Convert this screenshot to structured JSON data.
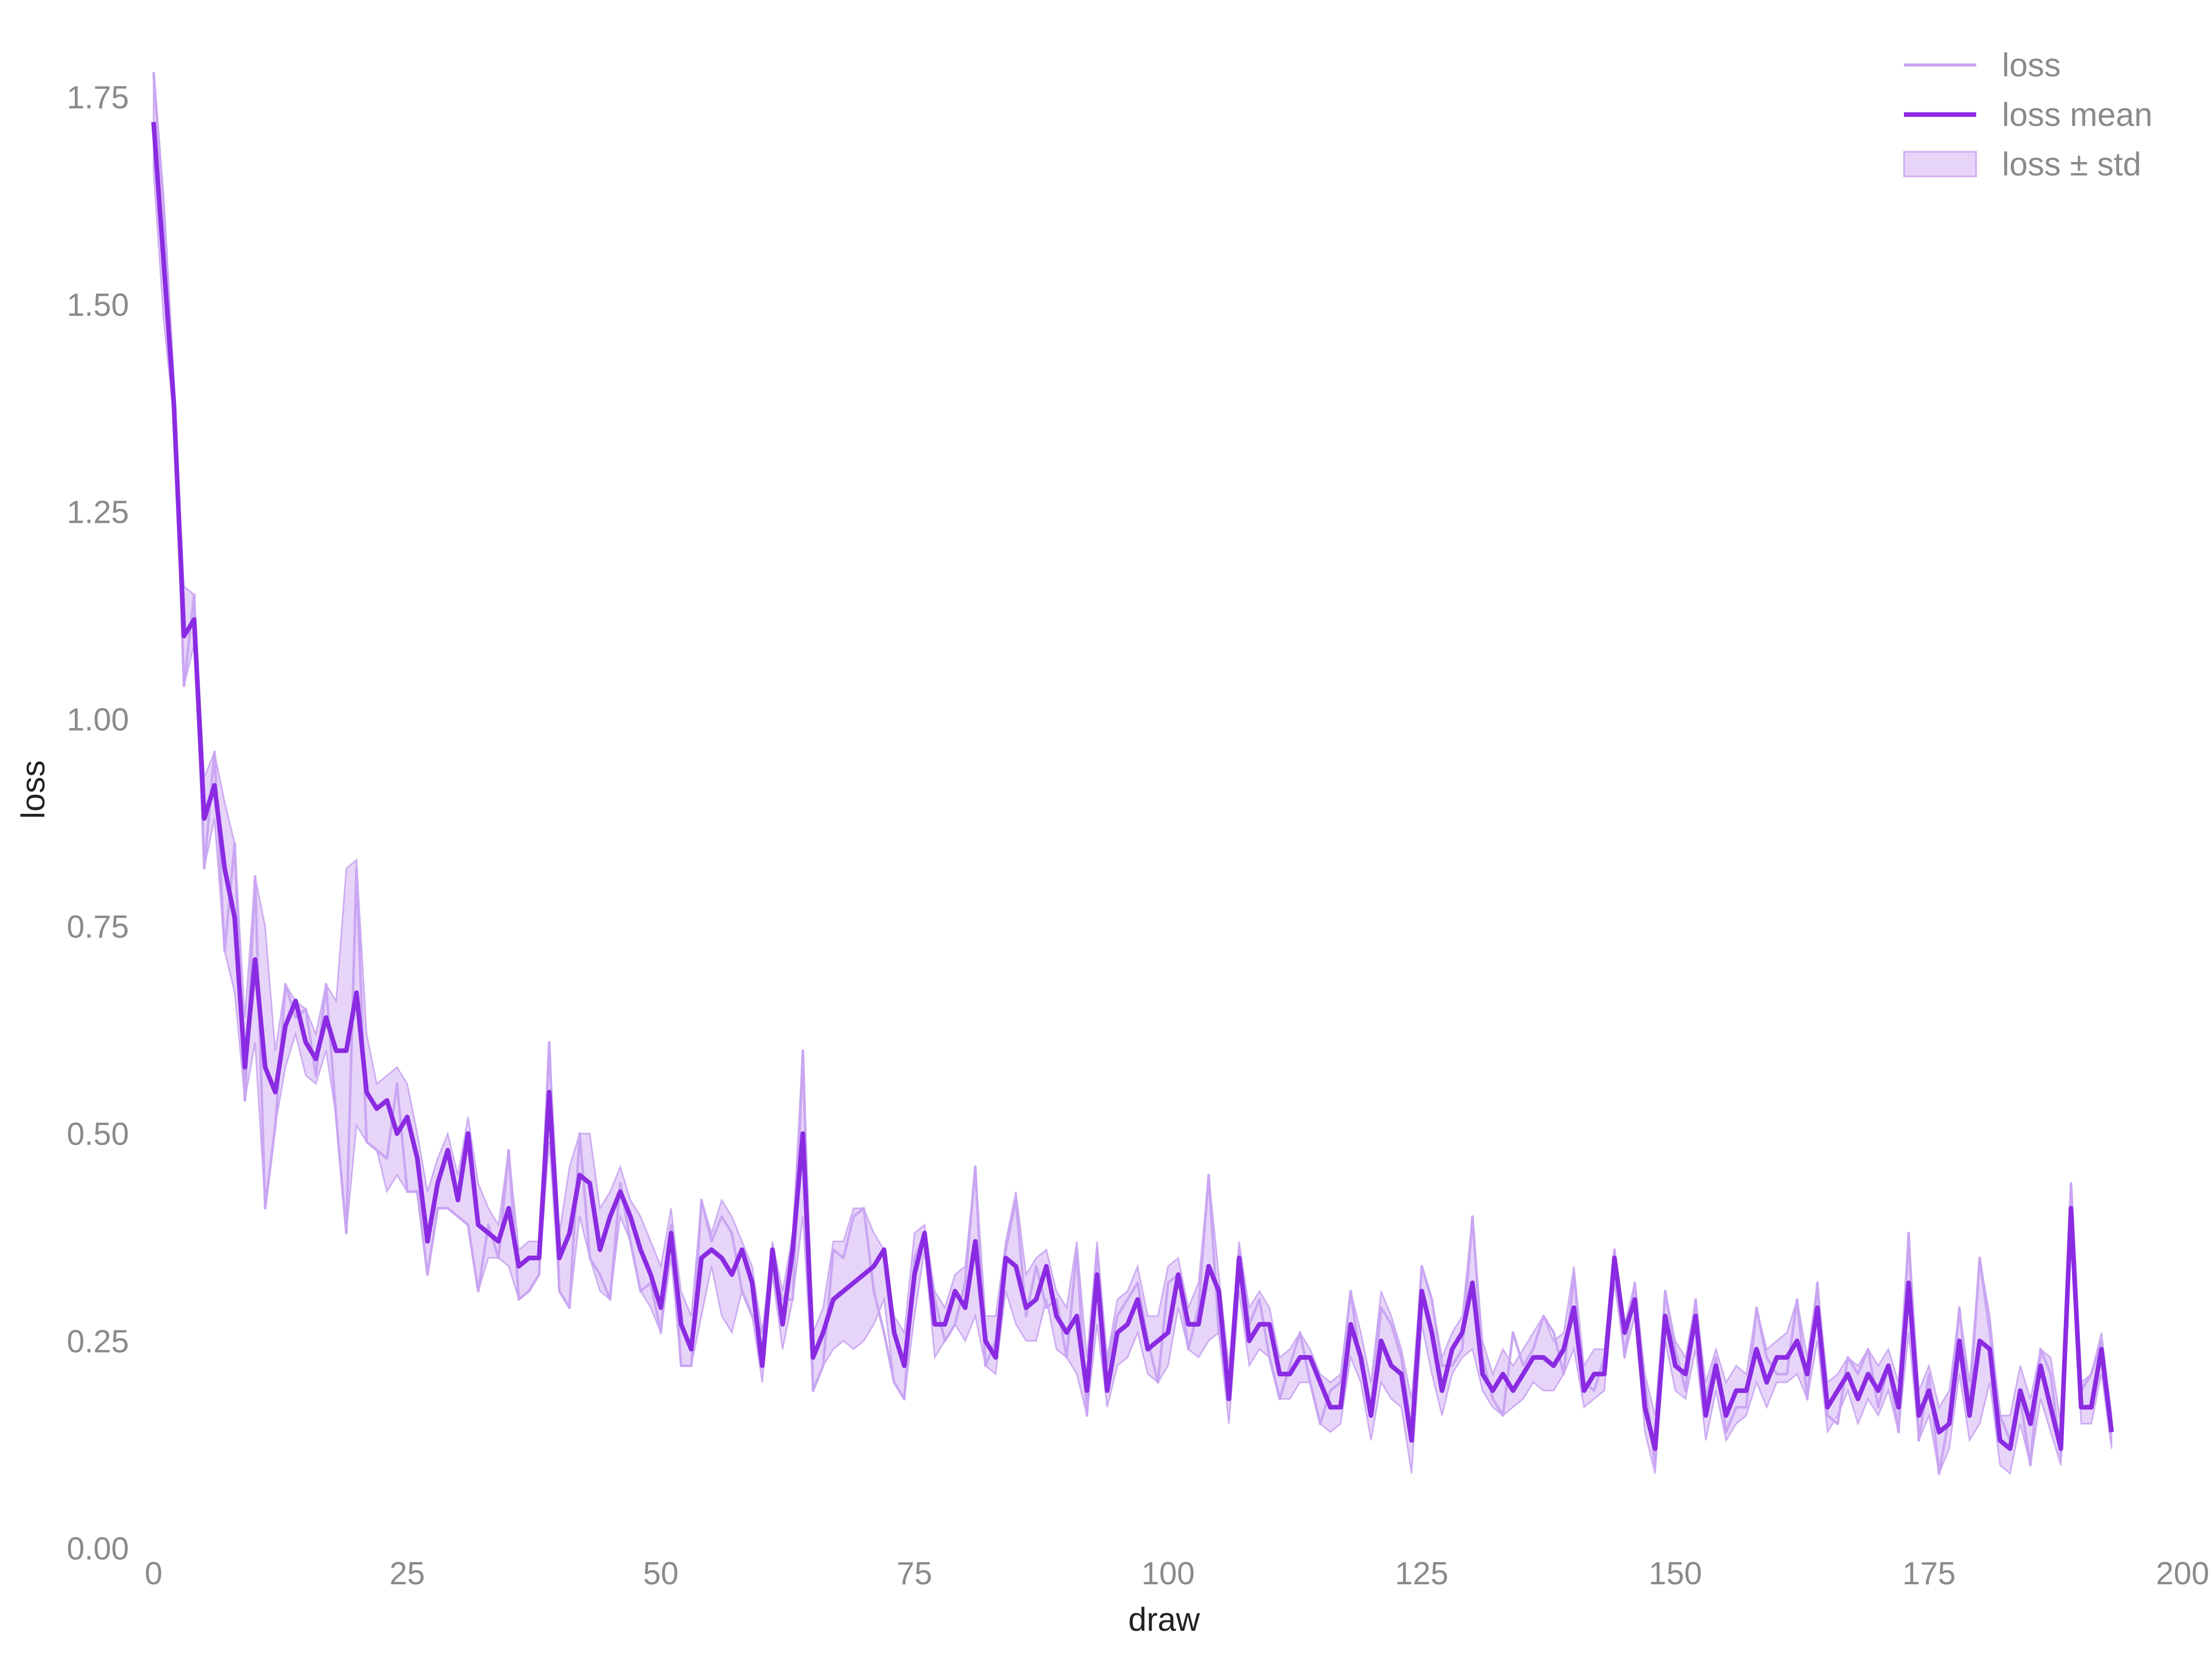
{
  "colors": {
    "raw_line": "#c9a6f2",
    "mean_line": "#8a2be2",
    "band_fill": "#d7b8f5",
    "band_stroke": "#a064e6",
    "tick_text": "#8a8a8a",
    "axis_text": "#222222"
  },
  "chart_data": {
    "type": "line",
    "xlabel": "draw",
    "ylabel": "loss",
    "xlim": [
      -7,
      200
    ],
    "ylim": [
      0,
      1.78
    ],
    "xticks": [
      0,
      25,
      50,
      75,
      100,
      125,
      150,
      175,
      200
    ],
    "xtick_labels": [
      "0",
      "25",
      "50",
      "75",
      "100",
      "125",
      "150",
      "175",
      "200"
    ],
    "yticks": [
      0,
      0.25,
      0.5,
      0.75,
      1.0,
      1.25,
      1.5,
      1.75
    ],
    "ytick_labels": [
      "0.00",
      "0.25",
      "0.50",
      "0.75",
      "1.00",
      "1.25",
      "1.50",
      "1.75"
    ],
    "grid": false,
    "legend_position": "top-right",
    "legend": [
      "loss",
      "loss mean",
      "loss ± std"
    ],
    "x": [
      0,
      1,
      2,
      3,
      4,
      5,
      6,
      7,
      8,
      9,
      10,
      11,
      12,
      13,
      14,
      15,
      16,
      17,
      18,
      19,
      20,
      21,
      22,
      23,
      24,
      25,
      26,
      27,
      28,
      29,
      30,
      31,
      32,
      33,
      34,
      35,
      36,
      37,
      38,
      39,
      40,
      41,
      42,
      43,
      44,
      45,
      46,
      47,
      48,
      49,
      50,
      51,
      52,
      53,
      54,
      55,
      56,
      57,
      58,
      59,
      60,
      61,
      62,
      63,
      64,
      65,
      66,
      67,
      68,
      69,
      70,
      71,
      72,
      73,
      74,
      75,
      76,
      77,
      78,
      79,
      80,
      81,
      82,
      83,
      84,
      85,
      86,
      87,
      88,
      89,
      90,
      91,
      92,
      93,
      94,
      95,
      96,
      97,
      98,
      99,
      100,
      101,
      102,
      103,
      104,
      105,
      106,
      107,
      108,
      109,
      110,
      111,
      112,
      113,
      114,
      115,
      116,
      117,
      118,
      119,
      120,
      121,
      122,
      123,
      124,
      125,
      126,
      127,
      128,
      129,
      130,
      131,
      132,
      133,
      134,
      135,
      136,
      137,
      138,
      139,
      140,
      141,
      142,
      143,
      144,
      145,
      146,
      147,
      148,
      149,
      150,
      151,
      152,
      153,
      154,
      155,
      156,
      157,
      158,
      159,
      160,
      161,
      162,
      163,
      164,
      165,
      166,
      167,
      168,
      169,
      170,
      171,
      172,
      173,
      174,
      175,
      176,
      177,
      178,
      179,
      180,
      181,
      182,
      183,
      184,
      185,
      186,
      187,
      188,
      189,
      190,
      191,
      192,
      193
    ],
    "series": [
      {
        "name": "loss mean",
        "values": [
          1.72,
          1.55,
          1.38,
          1.1,
          1.12,
          0.88,
          0.92,
          0.82,
          0.76,
          0.58,
          0.71,
          0.58,
          0.55,
          0.63,
          0.66,
          0.61,
          0.59,
          0.64,
          0.6,
          0.6,
          0.67,
          0.55,
          0.53,
          0.54,
          0.5,
          0.52,
          0.47,
          0.37,
          0.44,
          0.48,
          0.42,
          0.5,
          0.39,
          0.38,
          0.37,
          0.41,
          0.34,
          0.35,
          0.35,
          0.55,
          0.35,
          0.38,
          0.45,
          0.44,
          0.36,
          0.4,
          0.43,
          0.4,
          0.36,
          0.33,
          0.29,
          0.38,
          0.27,
          0.24,
          0.35,
          0.36,
          0.35,
          0.33,
          0.36,
          0.32,
          0.22,
          0.36,
          0.27,
          0.36,
          0.5,
          0.23,
          0.26,
          0.3,
          0.31,
          0.32,
          0.33,
          0.34,
          0.36,
          0.26,
          0.22,
          0.33,
          0.38,
          0.27,
          0.27,
          0.31,
          0.29,
          0.37,
          0.25,
          0.23,
          0.35,
          0.34,
          0.29,
          0.3,
          0.34,
          0.28,
          0.26,
          0.28,
          0.19,
          0.33,
          0.19,
          0.26,
          0.27,
          0.3,
          0.24,
          0.25,
          0.26,
          0.33,
          0.27,
          0.27,
          0.34,
          0.31,
          0.18,
          0.35,
          0.25,
          0.27,
          0.27,
          0.21,
          0.21,
          0.23,
          0.23,
          0.2,
          0.17,
          0.17,
          0.27,
          0.23,
          0.16,
          0.25,
          0.22,
          0.21,
          0.13,
          0.31,
          0.26,
          0.19,
          0.24,
          0.26,
          0.32,
          0.21,
          0.19,
          0.21,
          0.19,
          0.21,
          0.23,
          0.23,
          0.22,
          0.24,
          0.29,
          0.19,
          0.21,
          0.21,
          0.35,
          0.26,
          0.3,
          0.17,
          0.12,
          0.28,
          0.22,
          0.21,
          0.28,
          0.16,
          0.22,
          0.16,
          0.19,
          0.19,
          0.24,
          0.2,
          0.23,
          0.23,
          0.25,
          0.21,
          0.29,
          0.17,
          0.19,
          0.21,
          0.18,
          0.21,
          0.19,
          0.22,
          0.17,
          0.32,
          0.16,
          0.19,
          0.14,
          0.15,
          0.25,
          0.16,
          0.25,
          0.24,
          0.13,
          0.12,
          0.19,
          0.15,
          0.22,
          0.17,
          0.12,
          0.41,
          0.17,
          0.17,
          0.24,
          0.14
        ]
      },
      {
        "name": "loss",
        "values": [
          1.78,
          1.62,
          1.4,
          1.04,
          1.15,
          0.82,
          0.96,
          0.72,
          0.85,
          0.54,
          0.81,
          0.41,
          0.51,
          0.68,
          0.64,
          0.65,
          0.57,
          0.68,
          0.52,
          0.38,
          0.82,
          0.49,
          0.48,
          0.47,
          0.56,
          0.43,
          0.43,
          0.33,
          0.41,
          0.41,
          0.4,
          0.39,
          0.31,
          0.39,
          0.35,
          0.48,
          0.3,
          0.31,
          0.33,
          0.61,
          0.31,
          0.29,
          0.5,
          0.35,
          0.33,
          0.3,
          0.44,
          0.37,
          0.31,
          0.32,
          0.26,
          0.39,
          0.22,
          0.22,
          0.42,
          0.37,
          0.4,
          0.38,
          0.31,
          0.28,
          0.26,
          0.34,
          0.3,
          0.3,
          0.6,
          0.19,
          0.22,
          0.36,
          0.35,
          0.4,
          0.41,
          0.31,
          0.26,
          0.2,
          0.18,
          0.35,
          0.38,
          0.3,
          0.25,
          0.27,
          0.32,
          0.46,
          0.22,
          0.25,
          0.36,
          0.42,
          0.28,
          0.34,
          0.29,
          0.3,
          0.23,
          0.36,
          0.16,
          0.36,
          0.22,
          0.28,
          0.3,
          0.32,
          0.25,
          0.2,
          0.32,
          0.33,
          0.24,
          0.29,
          0.45,
          0.26,
          0.2,
          0.36,
          0.27,
          0.3,
          0.23,
          0.18,
          0.22,
          0.26,
          0.2,
          0.15,
          0.19,
          0.2,
          0.31,
          0.22,
          0.17,
          0.29,
          0.27,
          0.23,
          0.14,
          0.34,
          0.3,
          0.22,
          0.22,
          0.24,
          0.4,
          0.23,
          0.18,
          0.16,
          0.26,
          0.22,
          0.24,
          0.28,
          0.26,
          0.21,
          0.33,
          0.2,
          0.19,
          0.23,
          0.36,
          0.23,
          0.32,
          0.2,
          0.1,
          0.31,
          0.24,
          0.19,
          0.3,
          0.18,
          0.23,
          0.14,
          0.17,
          0.17,
          0.29,
          0.23,
          0.21,
          0.21,
          0.3,
          0.18,
          0.32,
          0.16,
          0.15,
          0.23,
          0.21,
          0.24,
          0.17,
          0.22,
          0.14,
          0.38,
          0.13,
          0.21,
          0.09,
          0.16,
          0.29,
          0.17,
          0.35,
          0.26,
          0.16,
          0.13,
          0.18,
          0.1,
          0.24,
          0.21,
          0.11,
          0.44,
          0.19,
          0.21,
          0.25,
          0.15
        ]
      },
      {
        "name": "loss ± std",
        "upper": [
          1.78,
          1.62,
          1.4,
          1.16,
          1.15,
          0.93,
          0.96,
          0.9,
          0.85,
          0.64,
          0.81,
          0.75,
          0.6,
          0.68,
          0.66,
          0.65,
          0.62,
          0.68,
          0.66,
          0.82,
          0.83,
          0.62,
          0.56,
          0.57,
          0.58,
          0.56,
          0.5,
          0.43,
          0.47,
          0.5,
          0.45,
          0.52,
          0.44,
          0.41,
          0.39,
          0.48,
          0.36,
          0.37,
          0.37,
          0.61,
          0.38,
          0.46,
          0.5,
          0.5,
          0.41,
          0.43,
          0.46,
          0.42,
          0.4,
          0.37,
          0.34,
          0.41,
          0.31,
          0.28,
          0.42,
          0.38,
          0.42,
          0.4,
          0.37,
          0.34,
          0.26,
          0.37,
          0.31,
          0.38,
          0.6,
          0.26,
          0.29,
          0.37,
          0.37,
          0.41,
          0.41,
          0.38,
          0.36,
          0.28,
          0.26,
          0.38,
          0.39,
          0.31,
          0.29,
          0.33,
          0.34,
          0.46,
          0.28,
          0.28,
          0.37,
          0.43,
          0.33,
          0.35,
          0.36,
          0.31,
          0.29,
          0.37,
          0.23,
          0.37,
          0.23,
          0.3,
          0.31,
          0.34,
          0.28,
          0.28,
          0.34,
          0.35,
          0.29,
          0.32,
          0.45,
          0.33,
          0.22,
          0.37,
          0.29,
          0.31,
          0.29,
          0.23,
          0.24,
          0.26,
          0.24,
          0.21,
          0.2,
          0.21,
          0.31,
          0.26,
          0.2,
          0.31,
          0.28,
          0.24,
          0.18,
          0.34,
          0.3,
          0.23,
          0.26,
          0.28,
          0.4,
          0.25,
          0.21,
          0.24,
          0.22,
          0.24,
          0.26,
          0.28,
          0.25,
          0.26,
          0.34,
          0.22,
          0.24,
          0.24,
          0.36,
          0.27,
          0.32,
          0.21,
          0.16,
          0.31,
          0.25,
          0.23,
          0.3,
          0.2,
          0.24,
          0.2,
          0.22,
          0.21,
          0.29,
          0.24,
          0.25,
          0.26,
          0.3,
          0.23,
          0.32,
          0.2,
          0.21,
          0.23,
          0.22,
          0.24,
          0.22,
          0.24,
          0.2,
          0.38,
          0.19,
          0.22,
          0.17,
          0.19,
          0.29,
          0.2,
          0.35,
          0.28,
          0.16,
          0.16,
          0.22,
          0.18,
          0.24,
          0.23,
          0.15,
          0.44,
          0.2,
          0.21,
          0.26,
          0.16
        ],
        "lower": [
          1.66,
          1.48,
          1.36,
          1.04,
          1.09,
          0.82,
          0.88,
          0.72,
          0.67,
          0.54,
          0.61,
          0.41,
          0.51,
          0.58,
          0.62,
          0.57,
          0.56,
          0.6,
          0.52,
          0.38,
          0.51,
          0.49,
          0.48,
          0.43,
          0.45,
          0.43,
          0.43,
          0.33,
          0.41,
          0.41,
          0.4,
          0.39,
          0.31,
          0.35,
          0.35,
          0.34,
          0.3,
          0.31,
          0.33,
          0.49,
          0.31,
          0.29,
          0.4,
          0.35,
          0.31,
          0.3,
          0.4,
          0.37,
          0.31,
          0.29,
          0.26,
          0.35,
          0.22,
          0.22,
          0.28,
          0.34,
          0.28,
          0.26,
          0.31,
          0.28,
          0.2,
          0.33,
          0.24,
          0.3,
          0.4,
          0.19,
          0.22,
          0.24,
          0.25,
          0.24,
          0.25,
          0.27,
          0.3,
          0.2,
          0.18,
          0.28,
          0.36,
          0.23,
          0.25,
          0.27,
          0.25,
          0.28,
          0.22,
          0.21,
          0.31,
          0.27,
          0.25,
          0.25,
          0.3,
          0.24,
          0.23,
          0.21,
          0.16,
          0.27,
          0.17,
          0.22,
          0.23,
          0.26,
          0.21,
          0.2,
          0.22,
          0.29,
          0.24,
          0.23,
          0.25,
          0.26,
          0.15,
          0.31,
          0.22,
          0.24,
          0.23,
          0.18,
          0.18,
          0.2,
          0.2,
          0.15,
          0.14,
          0.15,
          0.23,
          0.2,
          0.13,
          0.2,
          0.18,
          0.17,
          0.09,
          0.27,
          0.21,
          0.16,
          0.21,
          0.23,
          0.24,
          0.19,
          0.17,
          0.16,
          0.17,
          0.18,
          0.2,
          0.19,
          0.19,
          0.21,
          0.24,
          0.17,
          0.18,
          0.19,
          0.32,
          0.23,
          0.28,
          0.14,
          0.09,
          0.25,
          0.19,
          0.18,
          0.24,
          0.13,
          0.19,
          0.13,
          0.15,
          0.16,
          0.2,
          0.17,
          0.2,
          0.2,
          0.21,
          0.18,
          0.25,
          0.14,
          0.16,
          0.19,
          0.15,
          0.18,
          0.16,
          0.19,
          0.14,
          0.26,
          0.13,
          0.16,
          0.09,
          0.12,
          0.21,
          0.13,
          0.15,
          0.2,
          0.1,
          0.09,
          0.15,
          0.1,
          0.18,
          0.14,
          0.1,
          0.37,
          0.15,
          0.15,
          0.21,
          0.12
        ]
      }
    ]
  }
}
